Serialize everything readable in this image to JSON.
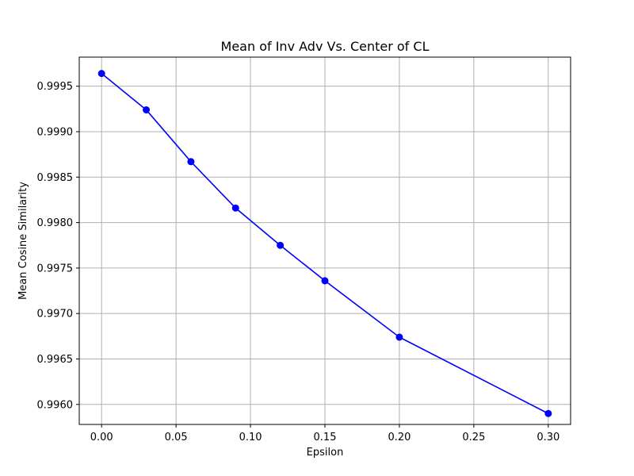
{
  "chart_data": {
    "type": "line",
    "title": "Mean of Inv Adv Vs. Center of CL",
    "xlabel": "Epsilon",
    "ylabel": "Mean Cosine Similarity",
    "xlim": [
      -0.015,
      0.315
    ],
    "ylim": [
      0.99578,
      0.99982
    ],
    "grid": true,
    "x_ticks": [
      0.0,
      0.05,
      0.1,
      0.15,
      0.2,
      0.25,
      0.3
    ],
    "x_tick_labels": [
      "0.00",
      "0.05",
      "0.10",
      "0.15",
      "0.20",
      "0.25",
      "0.30"
    ],
    "y_ticks": [
      0.996,
      0.9965,
      0.997,
      0.9975,
      0.998,
      0.9985,
      0.999,
      0.9995
    ],
    "y_tick_labels": [
      "0.9960",
      "0.9965",
      "0.9970",
      "0.9975",
      "0.9980",
      "0.9985",
      "0.9990",
      "0.9995"
    ],
    "series": [
      {
        "color": "#0000ff",
        "marker": "circle",
        "x": [
          0.0,
          0.03,
          0.06,
          0.09,
          0.12,
          0.15,
          0.2,
          0.3
        ],
        "y": [
          0.99964,
          0.99924,
          0.99867,
          0.99816,
          0.99775,
          0.99736,
          0.99674,
          0.9959
        ]
      }
    ]
  }
}
